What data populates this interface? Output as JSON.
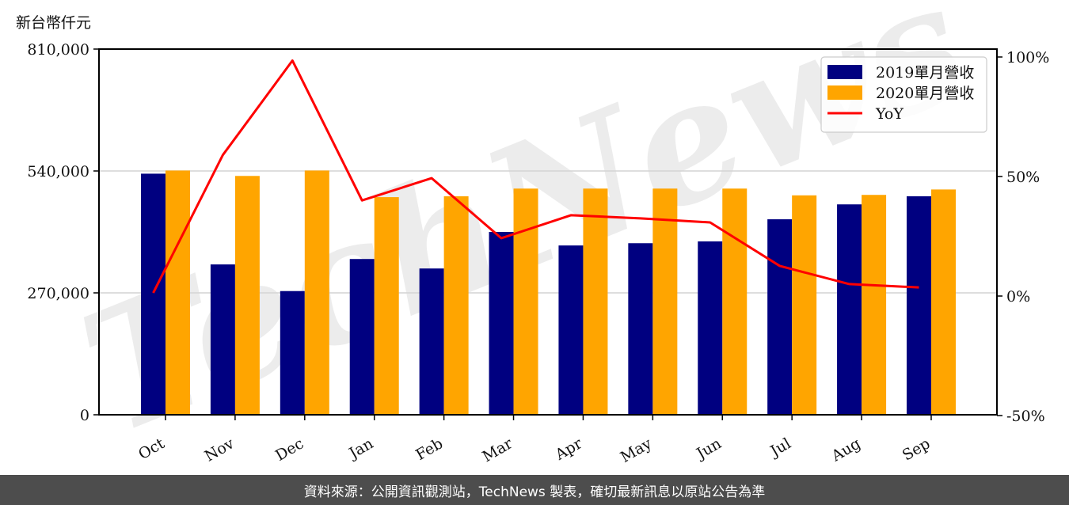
{
  "unit_label": "新台幣仟元",
  "footer": "資料來源：公開資訊觀測站，TechNews 製表，確切最新訊息以原站公告為準",
  "watermark": "TechNews",
  "colors": {
    "series2019": "#000080",
    "series2020": "#FFA500",
    "yoy": "#FF0000",
    "grid": "#d3d3d3",
    "footer_bg": "#4d4d4d"
  },
  "chart_data": {
    "type": "bar",
    "title": "",
    "xlabel": "",
    "ylabel": "新台幣仟元",
    "y2label": "YoY",
    "categories": [
      "Oct",
      "Nov",
      "Dec",
      "Jan",
      "Feb",
      "Mar",
      "Apr",
      "May",
      "Jun",
      "Jul",
      "Aug",
      "Sep"
    ],
    "series": [
      {
        "name": "2019單月營收",
        "type": "bar",
        "axis": "left",
        "color": "#000080",
        "values": [
          534000,
          333000,
          274000,
          345000,
          324000,
          405000,
          375000,
          380000,
          384000,
          433000,
          466000,
          484000
        ]
      },
      {
        "name": "2020單月營收",
        "type": "bar",
        "axis": "left",
        "color": "#FFA500",
        "values": [
          541000,
          529000,
          541000,
          482000,
          484000,
          501000,
          501000,
          501000,
          501000,
          486000,
          487000,
          499000
        ]
      },
      {
        "name": "YoY",
        "type": "line",
        "axis": "right",
        "color": "#FF0000",
        "values": [
          1.3,
          59.0,
          98.5,
          40.0,
          49.3,
          24.2,
          33.8,
          32.5,
          30.8,
          12.6,
          5.0,
          3.6
        ]
      }
    ],
    "ylim": [
      0,
      810000
    ],
    "yticks": [
      0,
      270000,
      540000,
      810000
    ],
    "ytick_labels": [
      "0",
      "270,000",
      "540,000",
      "810,000"
    ],
    "y2lim": [
      -50,
      100
    ],
    "y2ticks": [
      -50,
      0,
      50,
      100
    ],
    "y2tick_labels": [
      "-50%",
      "0%",
      "50%",
      "100%"
    ],
    "grid": "horizontal",
    "legend": {
      "position": "upper right",
      "entries": [
        "2019單月營收",
        "2020單月營收",
        "YoY"
      ]
    }
  }
}
